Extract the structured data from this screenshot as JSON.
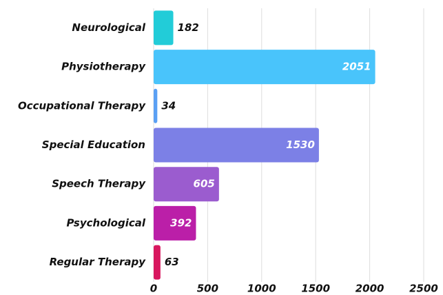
{
  "chart_data": {
    "type": "hbar",
    "categories": [
      "Neurological",
      "Physiotherapy",
      "Occupational Therapy",
      "Special Education",
      "Speech Therapy",
      "Psychological",
      "Regular Therapy"
    ],
    "values": [
      182,
      2051,
      34,
      1530,
      605,
      392,
      63
    ],
    "colors": [
      "#22ccd8",
      "#49c4fb",
      "#5aa0f4",
      "#7c80e6",
      "#9b5ccf",
      "#bb1fa8",
      "#d8175f"
    ],
    "xlim": [
      0,
      2500
    ],
    "xticks": [
      0,
      500,
      1000,
      1500,
      2000,
      2500
    ],
    "grid": true
  }
}
